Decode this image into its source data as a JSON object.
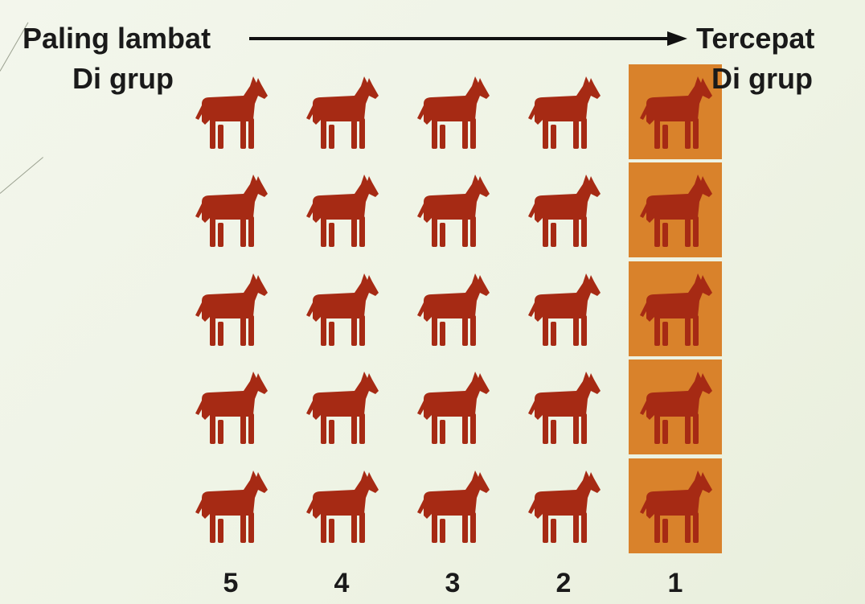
{
  "left_label": {
    "line1": "Paling lambat",
    "line2": "Di grup"
  },
  "right_label": {
    "line1": "Tercepat",
    "line2": "Di grup"
  },
  "ranks": [
    "5",
    "4",
    "3",
    "2",
    "1"
  ],
  "rows": 5,
  "highlight_rank": "1",
  "colors": {
    "horse": "#a62a14",
    "highlight": "#d9822b",
    "text": "#1a1a1a"
  },
  "icon": "horse-icon"
}
